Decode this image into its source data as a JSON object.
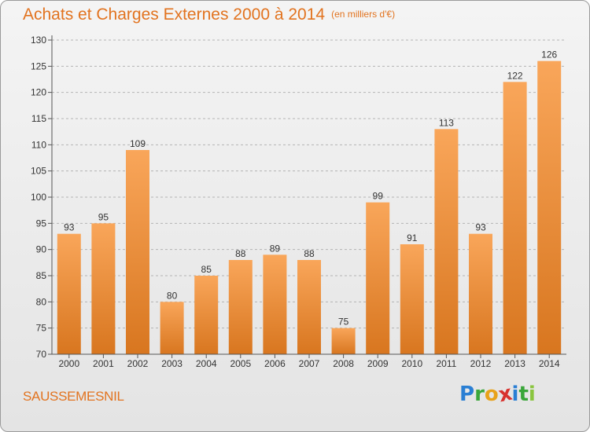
{
  "title": {
    "main": "Achats et Charges Externes 2000 à 2014",
    "unit": "(en milliers d'€)"
  },
  "location": "SAUSSEMESNIL",
  "logo": {
    "letters": [
      "P",
      "r",
      "o",
      "x",
      "i",
      "t",
      "i"
    ],
    "colors": [
      "#2a7fd4",
      "#3aa63a",
      "#e8a21a",
      "#d8322e",
      "#2a7fd4",
      "#3aa63a",
      "#8ac53e"
    ]
  },
  "colors": {
    "bar_light": "#f9a65a",
    "bar_dark": "#d8761f",
    "title": "#e2731f",
    "grid": "#b4b4b4"
  },
  "chart_data": {
    "type": "bar",
    "title": "Achats et Charges Externes 2000 à 2014",
    "subtitle": "(en milliers d'€)",
    "xlabel": "",
    "ylabel": "",
    "categories": [
      "2000",
      "2001",
      "2002",
      "2003",
      "2004",
      "2005",
      "2006",
      "2007",
      "2008",
      "2009",
      "2010",
      "2011",
      "2012",
      "2013",
      "2014"
    ],
    "values": [
      93,
      95,
      109,
      80,
      85,
      88,
      89,
      88,
      75,
      99,
      91,
      113,
      93,
      122,
      126
    ],
    "ylim": [
      70,
      130
    ],
    "yticks": [
      70,
      75,
      80,
      85,
      90,
      95,
      100,
      105,
      110,
      115,
      120,
      125,
      130
    ],
    "grid": "horizontal dashed",
    "legend": "none"
  }
}
